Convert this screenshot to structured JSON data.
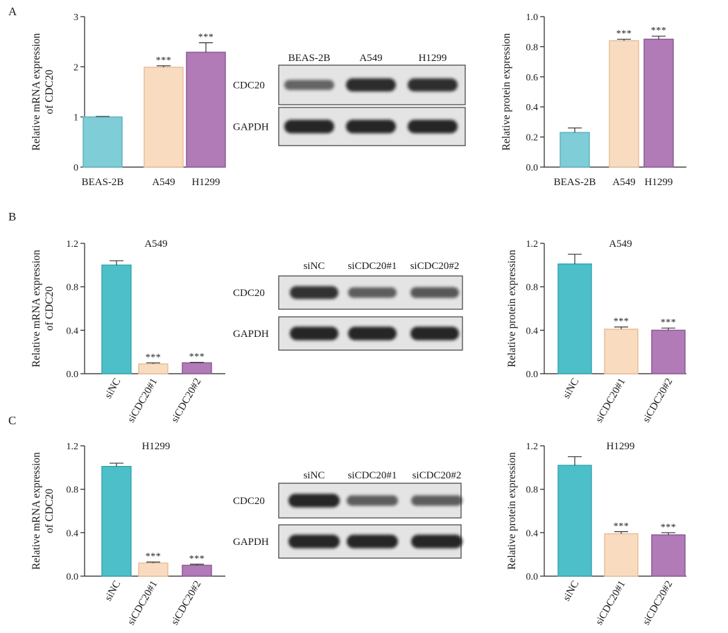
{
  "panel_letters": [
    "A",
    "B",
    "C"
  ],
  "colors": {
    "beas2b_sinc": "#7fcdd6",
    "beas2b_sinc_edge": "#5fb4bd",
    "sinc_strong": "#4dbfc8",
    "sinc_strong_edge": "#36a7b1",
    "a549_si1": "#f9dcc0",
    "a549_si1_edge": "#e8bf98",
    "h1299_si2": "#b07bb6",
    "h1299_si2_edge": "#8e5a96",
    "blot_bg": "#e4e4e4",
    "band": "#141414"
  },
  "chart_data": [
    {
      "id": "A-mrna",
      "type": "bar",
      "title": "",
      "ylabel": [
        "Relative mRNA expression",
        "of CDC20"
      ],
      "xlabel": "",
      "categories": [
        "BEAS-2B",
        "A549",
        "H1299"
      ],
      "values": [
        1.0,
        1.99,
        2.29
      ],
      "errors": [
        0.01,
        0.03,
        0.19
      ],
      "significance": [
        "",
        "***",
        "***"
      ],
      "ylim": [
        0,
        3
      ],
      "yticks": [
        0,
        1,
        2,
        3
      ],
      "ytick_labels": [
        "0",
        "1",
        "2",
        "3"
      ],
      "rotated_labels": false,
      "grid": false
    },
    {
      "id": "A-protein",
      "type": "bar",
      "title": "",
      "ylabel": [
        "Relative protein expression"
      ],
      "xlabel": "",
      "categories": [
        "BEAS-2B",
        "A549",
        "H1299"
      ],
      "values": [
        0.23,
        0.84,
        0.85
      ],
      "errors": [
        0.03,
        0.01,
        0.02
      ],
      "significance": [
        "",
        "***",
        "***"
      ],
      "ylim": [
        0,
        1.0
      ],
      "yticks": [
        0,
        0.2,
        0.4,
        0.6,
        0.8,
        1.0
      ],
      "ytick_labels": [
        "0.0",
        "0.2",
        "0.4",
        "0.6",
        "0.8",
        "1.0"
      ],
      "rotated_labels": false,
      "grid": false
    },
    {
      "id": "B-mrna",
      "type": "bar",
      "title": "A549",
      "ylabel": [
        "Relative mRNA expression",
        "of CDC20"
      ],
      "xlabel": "",
      "categories": [
        "siNC",
        "siCDC20#1",
        "siCDC20#2"
      ],
      "values": [
        1.0,
        0.09,
        0.1
      ],
      "errors": [
        0.04,
        0.01,
        0.005
      ],
      "significance": [
        "",
        "***",
        "***"
      ],
      "ylim": [
        0,
        1.2
      ],
      "yticks": [
        0,
        0.4,
        0.8,
        1.2
      ],
      "ytick_labels": [
        "0.0",
        "0.4",
        "0.8",
        "1.2"
      ],
      "rotated_labels": true,
      "grid": false
    },
    {
      "id": "B-protein",
      "type": "bar",
      "title": "A549",
      "ylabel": [
        "Relative protein expression"
      ],
      "xlabel": "",
      "categories": [
        "siNC",
        "siCDC20#1",
        "siCDC20#2"
      ],
      "values": [
        1.01,
        0.41,
        0.4
      ],
      "errors": [
        0.09,
        0.02,
        0.02
      ],
      "significance": [
        "",
        "***",
        "***"
      ],
      "ylim": [
        0,
        1.2
      ],
      "yticks": [
        0,
        0.4,
        0.8,
        1.2
      ],
      "ytick_labels": [
        "0.0",
        "0.4",
        "0.8",
        "1.2"
      ],
      "rotated_labels": true,
      "grid": false
    },
    {
      "id": "C-mrna",
      "type": "bar",
      "title": "H1299",
      "ylabel": [
        "Relative mRNA expression",
        "of CDC20"
      ],
      "xlabel": "",
      "categories": [
        "siNC",
        "siCDC20#1",
        "siCDC20#2"
      ],
      "values": [
        1.01,
        0.12,
        0.1
      ],
      "errors": [
        0.03,
        0.01,
        0.01
      ],
      "significance": [
        "",
        "***",
        "***"
      ],
      "ylim": [
        0,
        1.2
      ],
      "yticks": [
        0,
        0.4,
        0.8,
        1.2
      ],
      "ytick_labels": [
        "0.0",
        "0.4",
        "0.8",
        "1.2"
      ],
      "rotated_labels": true,
      "grid": false
    },
    {
      "id": "C-protein",
      "type": "bar",
      "title": "H1299",
      "ylabel": [
        "Relative protein expression"
      ],
      "xlabel": "",
      "categories": [
        "siNC",
        "siCDC20#1",
        "siCDC20#2"
      ],
      "values": [
        1.02,
        0.39,
        0.38
      ],
      "errors": [
        0.08,
        0.02,
        0.02
      ],
      "significance": [
        "",
        "***",
        "***"
      ],
      "ylim": [
        0,
        1.2
      ],
      "yticks": [
        0,
        0.4,
        0.8,
        1.2
      ],
      "ytick_labels": [
        "0.0",
        "0.4",
        "0.8",
        "1.2"
      ],
      "rotated_labels": true,
      "grid": false
    }
  ],
  "blots": [
    {
      "id": "A-blot",
      "lanes": [
        "BEAS-2B",
        "A549",
        "H1299"
      ],
      "rows": [
        {
          "label": "CDC20",
          "intensity": [
            0.45,
            0.9,
            0.88
          ]
        },
        {
          "label": "GAPDH",
          "intensity": [
            0.95,
            0.95,
            0.95
          ]
        }
      ]
    },
    {
      "id": "B-blot",
      "lanes": [
        "siNC",
        "siCDC20#1",
        "siCDC20#2"
      ],
      "rows": [
        {
          "label": "CDC20",
          "intensity": [
            0.85,
            0.5,
            0.55
          ]
        },
        {
          "label": "GAPDH",
          "intensity": [
            0.95,
            0.95,
            0.95
          ]
        }
      ]
    },
    {
      "id": "C-blot",
      "lanes": [
        "siNC",
        "siCDC20#1",
        "siCDC20#2"
      ],
      "rows": [
        {
          "label": "CDC20",
          "intensity": [
            0.95,
            0.5,
            0.5
          ]
        },
        {
          "label": "GAPDH",
          "intensity": [
            0.95,
            0.95,
            0.95
          ]
        }
      ]
    }
  ]
}
